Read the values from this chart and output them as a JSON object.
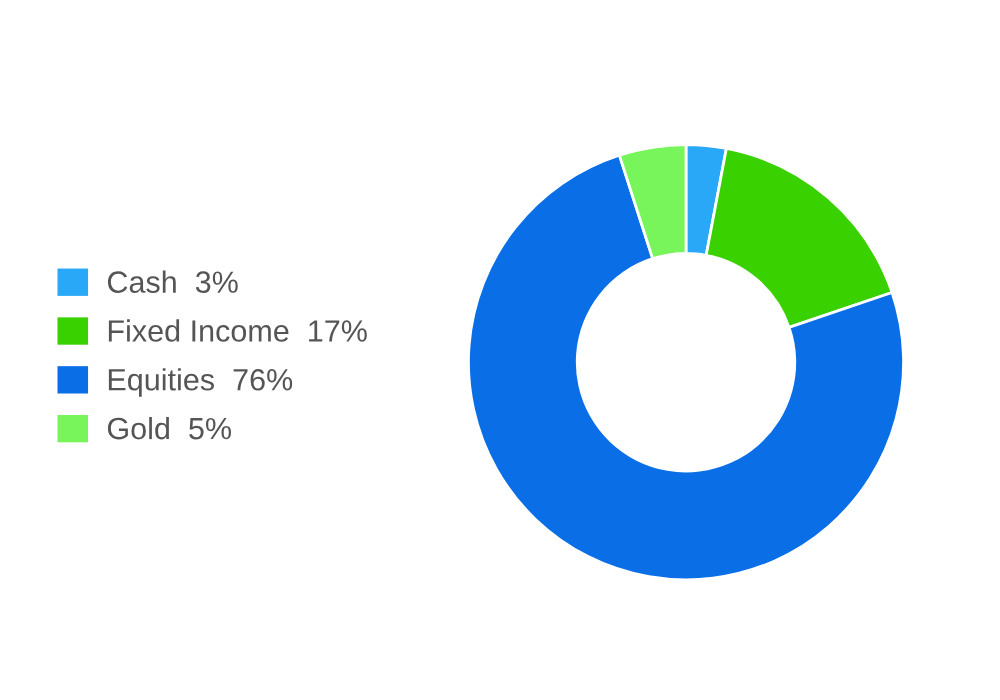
{
  "chart_data": {
    "type": "donut",
    "categories": [
      "Cash",
      "Fixed Income",
      "Equities",
      "Gold"
    ],
    "values": [
      3,
      17,
      76,
      5
    ],
    "value_labels": [
      "3%",
      "17%",
      "76%",
      "5%"
    ],
    "colors": [
      "#29a8f7",
      "#39d100",
      "#0a6fe6",
      "#77f55a"
    ],
    "legend": "left"
  }
}
